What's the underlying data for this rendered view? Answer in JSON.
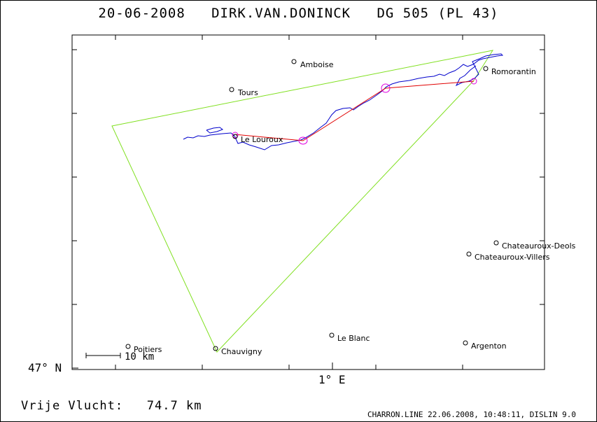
{
  "header": {
    "date": "20-06-2008",
    "pilot": "DIRK.VAN.DONINCK",
    "glider": "DG 505 (PL 43)"
  },
  "axes": {
    "lat_label": "47° N",
    "lon_label": "1° E"
  },
  "scale_bar": {
    "label": "10 km"
  },
  "footer": {
    "distance_label": "Vrije Vlucht:",
    "distance_value": "74.7 km",
    "producer": "CHARRON.LINE 22.06.2008, 10:48:11, DISLIN 9.0"
  },
  "towns": [
    {
      "name": "Amboise"
    },
    {
      "name": "Tours"
    },
    {
      "name": "Romorantin"
    },
    {
      "name": "Le Louroux"
    },
    {
      "name": "Chateauroux-Deols"
    },
    {
      "name": "Chateauroux-Villers"
    },
    {
      "name": "Le Blanc"
    },
    {
      "name": "Argenton"
    },
    {
      "name": "Poitiers"
    },
    {
      "name": "Chauvigny"
    }
  ],
  "colors": {
    "task_line": "#80e020",
    "flight_track": "#0000cc",
    "optimized_route": "#e00000",
    "turnpoint_marker": "#e000e0"
  }
}
